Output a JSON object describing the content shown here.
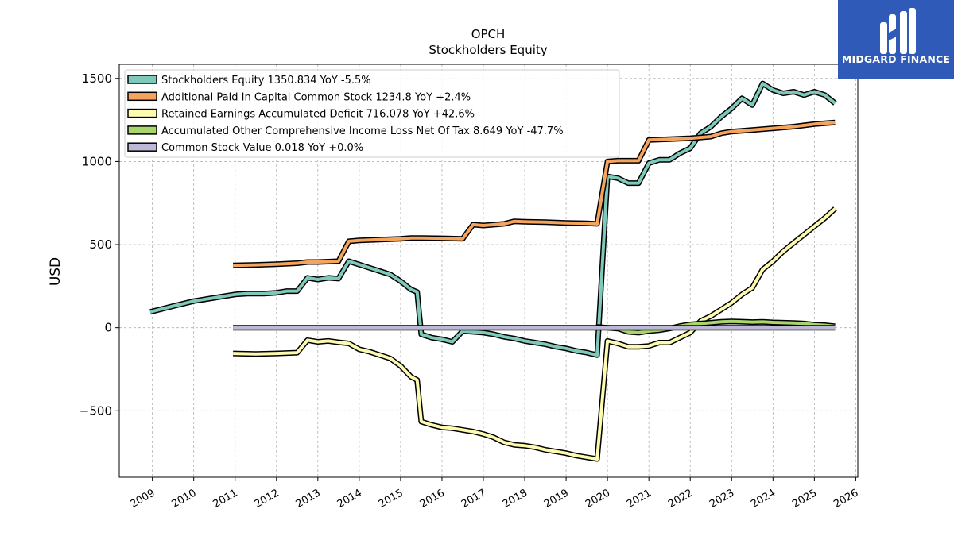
{
  "brand": {
    "name": "MIDGARD FINANCE",
    "color": "#2f5ab8"
  },
  "chart_data": {
    "type": "line",
    "title": "OPCH",
    "subtitle": "Stockholders  Equity",
    "ylabel": "USD",
    "xlim": [
      2008.2,
      2026.05
    ],
    "ylim": [
      -900,
      1585
    ],
    "yticks": [
      -500,
      0,
      500,
      1000,
      1500
    ],
    "ytick_labels": [
      "−500",
      "0",
      "500",
      "1000",
      "1500"
    ],
    "xticks": [
      2009,
      2010,
      2011,
      2012,
      2013,
      2014,
      2015,
      2016,
      2017,
      2018,
      2019,
      2020,
      2021,
      2022,
      2023,
      2024,
      2025,
      2026
    ],
    "xtick_labels": [
      "2009",
      "2010",
      "2011",
      "2012",
      "2013",
      "2014",
      "2015",
      "2016",
      "2017",
      "2018",
      "2019",
      "2020",
      "2021",
      "2022",
      "2023",
      "2024",
      "2025",
      "2026"
    ],
    "grid": true,
    "legend_position": "upper-left",
    "series": [
      {
        "name": "Stockholders Equity  1350.834 YoY -5.5%",
        "color": "#7fc9bb",
        "points": [
          [
            2008.95,
            95
          ],
          [
            2009.5,
            130
          ],
          [
            2010.0,
            160
          ],
          [
            2010.5,
            180
          ],
          [
            2011.0,
            200
          ],
          [
            2011.3,
            205
          ],
          [
            2011.7,
            205
          ],
          [
            2012.0,
            210
          ],
          [
            2012.25,
            220
          ],
          [
            2012.5,
            220
          ],
          [
            2012.75,
            300
          ],
          [
            2013.0,
            290
          ],
          [
            2013.25,
            300
          ],
          [
            2013.5,
            295
          ],
          [
            2013.75,
            400
          ],
          [
            2014.0,
            380
          ],
          [
            2014.25,
            360
          ],
          [
            2014.5,
            340
          ],
          [
            2014.75,
            320
          ],
          [
            2015.0,
            280
          ],
          [
            2015.25,
            230
          ],
          [
            2015.4,
            215
          ],
          [
            2015.5,
            -40
          ],
          [
            2015.75,
            -60
          ],
          [
            2016.0,
            -70
          ],
          [
            2016.25,
            -85
          ],
          [
            2016.5,
            -20
          ],
          [
            2016.75,
            -25
          ],
          [
            2017.0,
            -30
          ],
          [
            2017.25,
            -40
          ],
          [
            2017.5,
            -55
          ],
          [
            2017.75,
            -65
          ],
          [
            2018.0,
            -80
          ],
          [
            2018.25,
            -90
          ],
          [
            2018.5,
            -100
          ],
          [
            2018.75,
            -115
          ],
          [
            2019.0,
            -125
          ],
          [
            2019.25,
            -140
          ],
          [
            2019.5,
            -150
          ],
          [
            2019.75,
            -165
          ],
          [
            2020.0,
            910
          ],
          [
            2020.25,
            900
          ],
          [
            2020.5,
            870
          ],
          [
            2020.75,
            870
          ],
          [
            2021.0,
            990
          ],
          [
            2021.25,
            1010
          ],
          [
            2021.5,
            1010
          ],
          [
            2021.75,
            1050
          ],
          [
            2022.0,
            1080
          ],
          [
            2022.25,
            1170
          ],
          [
            2022.5,
            1210
          ],
          [
            2022.75,
            1270
          ],
          [
            2023.0,
            1320
          ],
          [
            2023.25,
            1380
          ],
          [
            2023.5,
            1340
          ],
          [
            2023.75,
            1470
          ],
          [
            2024.0,
            1430
          ],
          [
            2024.25,
            1410
          ],
          [
            2024.5,
            1420
          ],
          [
            2024.75,
            1400
          ],
          [
            2025.0,
            1420
          ],
          [
            2025.25,
            1400
          ],
          [
            2025.5,
            1350.834
          ]
        ]
      },
      {
        "name": "Additional Paid In Capital Common Stock  1234.8 YoY +2.4%",
        "color": "#f4a45e",
        "points": [
          [
            2010.95,
            375
          ],
          [
            2011.5,
            378
          ],
          [
            2012.0,
            382
          ],
          [
            2012.5,
            388
          ],
          [
            2012.75,
            395
          ],
          [
            2013.0,
            395
          ],
          [
            2013.5,
            400
          ],
          [
            2013.75,
            520
          ],
          [
            2014.0,
            525
          ],
          [
            2014.5,
            530
          ],
          [
            2015.0,
            535
          ],
          [
            2015.25,
            540
          ],
          [
            2015.5,
            540
          ],
          [
            2016.0,
            538
          ],
          [
            2016.5,
            535
          ],
          [
            2016.75,
            620
          ],
          [
            2017.0,
            615
          ],
          [
            2017.5,
            625
          ],
          [
            2017.75,
            640
          ],
          [
            2018.0,
            638
          ],
          [
            2018.5,
            635
          ],
          [
            2019.0,
            630
          ],
          [
            2019.5,
            628
          ],
          [
            2019.75,
            625
          ],
          [
            2020.0,
            1000
          ],
          [
            2020.25,
            1005
          ],
          [
            2020.5,
            1005
          ],
          [
            2020.75,
            1005
          ],
          [
            2021.0,
            1130
          ],
          [
            2021.5,
            1135
          ],
          [
            2022.0,
            1140
          ],
          [
            2022.25,
            1145
          ],
          [
            2022.5,
            1150
          ],
          [
            2022.75,
            1170
          ],
          [
            2023.0,
            1180
          ],
          [
            2023.5,
            1190
          ],
          [
            2024.0,
            1200
          ],
          [
            2024.5,
            1210
          ],
          [
            2025.0,
            1225
          ],
          [
            2025.5,
            1234.8
          ]
        ]
      },
      {
        "name": "Retained Earnings Accumulated Deficit  716.078 YoY +42.6%",
        "color": "#fdfbb0",
        "points": [
          [
            2010.95,
            -155
          ],
          [
            2011.5,
            -158
          ],
          [
            2012.0,
            -155
          ],
          [
            2012.5,
            -150
          ],
          [
            2012.75,
            -75
          ],
          [
            2013.0,
            -85
          ],
          [
            2013.25,
            -80
          ],
          [
            2013.5,
            -88
          ],
          [
            2013.75,
            -95
          ],
          [
            2014.0,
            -130
          ],
          [
            2014.25,
            -145
          ],
          [
            2014.5,
            -165
          ],
          [
            2014.75,
            -185
          ],
          [
            2015.0,
            -230
          ],
          [
            2015.25,
            -295
          ],
          [
            2015.4,
            -315
          ],
          [
            2015.5,
            -565
          ],
          [
            2015.75,
            -585
          ],
          [
            2016.0,
            -600
          ],
          [
            2016.25,
            -605
          ],
          [
            2016.5,
            -615
          ],
          [
            2016.75,
            -625
          ],
          [
            2017.0,
            -640
          ],
          [
            2017.25,
            -660
          ],
          [
            2017.5,
            -690
          ],
          [
            2017.75,
            -705
          ],
          [
            2018.0,
            -710
          ],
          [
            2018.25,
            -720
          ],
          [
            2018.5,
            -735
          ],
          [
            2018.75,
            -745
          ],
          [
            2019.0,
            -755
          ],
          [
            2019.25,
            -770
          ],
          [
            2019.5,
            -780
          ],
          [
            2019.75,
            -790
          ],
          [
            2020.0,
            -80
          ],
          [
            2020.25,
            -95
          ],
          [
            2020.5,
            -115
          ],
          [
            2020.75,
            -115
          ],
          [
            2021.0,
            -110
          ],
          [
            2021.25,
            -90
          ],
          [
            2021.5,
            -90
          ],
          [
            2021.75,
            -60
          ],
          [
            2022.0,
            -30
          ],
          [
            2022.25,
            40
          ],
          [
            2022.5,
            70
          ],
          [
            2022.75,
            110
          ],
          [
            2023.0,
            150
          ],
          [
            2023.25,
            200
          ],
          [
            2023.5,
            240
          ],
          [
            2023.75,
            350
          ],
          [
            2024.0,
            400
          ],
          [
            2024.25,
            460
          ],
          [
            2024.5,
            510
          ],
          [
            2024.75,
            560
          ],
          [
            2025.0,
            610
          ],
          [
            2025.25,
            660
          ],
          [
            2025.5,
            716.078
          ]
        ]
      },
      {
        "name": "Accumulated Other Comprehensive Income Loss Net Of Tax  8.649 YoY -47.7%",
        "color": "#a8d56c",
        "points": [
          [
            2019.75,
            5
          ],
          [
            2020.0,
            0
          ],
          [
            2020.25,
            -5
          ],
          [
            2020.5,
            -25
          ],
          [
            2020.75,
            -30
          ],
          [
            2021.0,
            -20
          ],
          [
            2021.25,
            -15
          ],
          [
            2021.5,
            -5
          ],
          [
            2021.75,
            10
          ],
          [
            2022.0,
            20
          ],
          [
            2022.25,
            25
          ],
          [
            2022.5,
            30
          ],
          [
            2022.75,
            35
          ],
          [
            2023.0,
            38
          ],
          [
            2023.25,
            36
          ],
          [
            2023.5,
            34
          ],
          [
            2023.75,
            35
          ],
          [
            2024.0,
            32
          ],
          [
            2024.25,
            30
          ],
          [
            2024.5,
            28
          ],
          [
            2024.75,
            25
          ],
          [
            2025.0,
            18
          ],
          [
            2025.25,
            15
          ],
          [
            2025.5,
            8.649
          ]
        ]
      },
      {
        "name": "Common Stock Value  0.018 YoY +0.0%",
        "color": "#bcb8d6",
        "points": [
          [
            2010.95,
            0.018
          ],
          [
            2025.5,
            0.018
          ]
        ]
      }
    ]
  }
}
